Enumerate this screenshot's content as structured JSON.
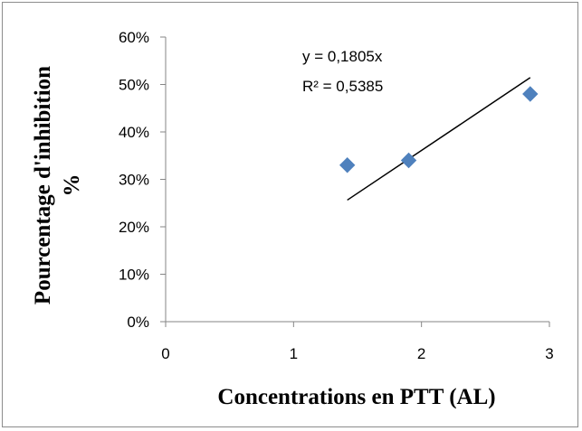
{
  "chart_data": {
    "type": "scatter",
    "title": "",
    "xlabel": "Concentrations en PTT (AL)",
    "ylabel_lines": [
      "Pourcentage d'inhibition",
      "%"
    ],
    "xlim": [
      0,
      3
    ],
    "ylim": [
      0,
      0.6
    ],
    "xticks": [
      0,
      1,
      2,
      3
    ],
    "xtick_labels": [
      "0",
      "1",
      "2",
      "3"
    ],
    "yticks": [
      0,
      0.1,
      0.2,
      0.3,
      0.4,
      0.5,
      0.6
    ],
    "ytick_labels": [
      "0%",
      "10%",
      "20%",
      "30%",
      "40%",
      "50%",
      "60%"
    ],
    "grid": false,
    "legend": false,
    "series": [
      {
        "x": [
          1.42,
          1.9,
          2.85
        ],
        "y": [
          0.33,
          0.34,
          0.48
        ],
        "marker": "diamond",
        "color": "#4f81bd"
      }
    ],
    "trendline": {
      "type": "linear",
      "x_range": [
        1.42,
        2.85
      ],
      "equation": "y = 0,1805x",
      "r_squared": "R² = 0,5385",
      "color": "#000000"
    }
  }
}
